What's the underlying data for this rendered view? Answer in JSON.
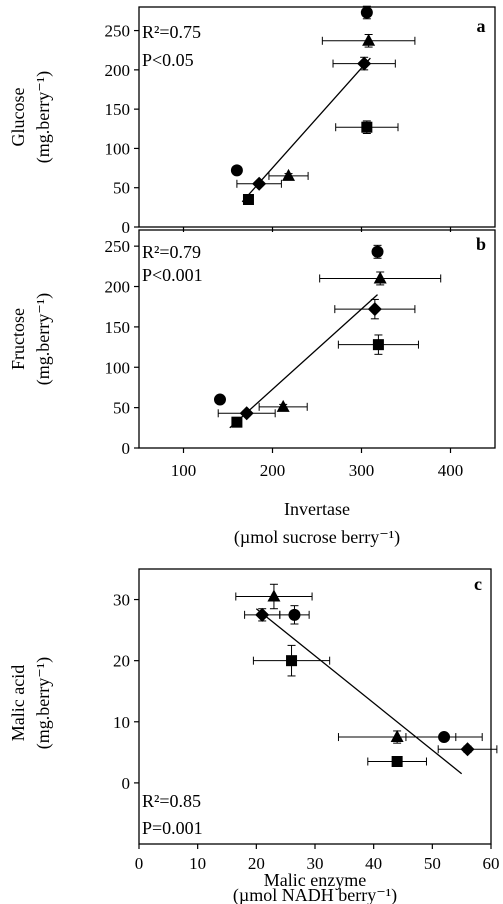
{
  "chart_data": [
    {
      "type": "scatter",
      "panel_label": "a",
      "stats": {
        "r2": "R²=0.75",
        "p": "P<0.05"
      },
      "ylabel": {
        "line1": "Glucose",
        "line2": "(mg.berry⁻¹)"
      },
      "xlim": [
        50,
        450
      ],
      "ylim": [
        0,
        280
      ],
      "yticks": [
        0,
        50,
        100,
        150,
        200,
        250
      ],
      "xticks": [
        100,
        200,
        300,
        400
      ],
      "show_xtick_labels": false,
      "points": [
        {
          "marker": "circle",
          "x": 160,
          "y": 72,
          "xerr": 0,
          "yerr": 3
        },
        {
          "marker": "square",
          "x": 173,
          "y": 35,
          "xerr": 0,
          "yerr": 3
        },
        {
          "marker": "diamond",
          "x": 185,
          "y": 55,
          "xerr": 25,
          "yerr": 3
        },
        {
          "marker": "triangle",
          "x": 218,
          "y": 65,
          "xerr": 22,
          "yerr": 3
        },
        {
          "marker": "circle",
          "x": 306,
          "y": 273,
          "xerr": 0,
          "yerr": 8
        },
        {
          "marker": "triangle",
          "x": 308,
          "y": 237,
          "xerr": 52,
          "yerr": 8
        },
        {
          "marker": "diamond",
          "x": 303,
          "y": 208,
          "xerr": 35,
          "yerr": 8
        },
        {
          "marker": "square",
          "x": 306,
          "y": 127,
          "xerr": 35,
          "yerr": 8
        }
      ],
      "fit_line": {
        "x1": 166,
        "y1": 32,
        "x2": 310,
        "y2": 215
      }
    },
    {
      "type": "scatter",
      "panel_label": "b",
      "stats": {
        "r2": "R²=0.79",
        "p": "P<0.001"
      },
      "ylabel": {
        "line1": "Fructose",
        "line2": "(mg.berry⁻¹)"
      },
      "xlabel": {
        "line1": "Invertase",
        "line2": "(µmol sucrose berry⁻¹)"
      },
      "xlim": [
        50,
        450
      ],
      "ylim": [
        0,
        270
      ],
      "yticks": [
        0,
        50,
        100,
        150,
        200,
        250
      ],
      "xticks": [
        100,
        200,
        300,
        400
      ],
      "show_xtick_labels": true,
      "points": [
        {
          "marker": "circle",
          "x": 141,
          "y": 60,
          "xerr": 0,
          "yerr": 3
        },
        {
          "marker": "square",
          "x": 160,
          "y": 32,
          "xerr": 0,
          "yerr": 3
        },
        {
          "marker": "diamond",
          "x": 171,
          "y": 43,
          "xerr": 32,
          "yerr": 3
        },
        {
          "marker": "triangle",
          "x": 212,
          "y": 51,
          "xerr": 27,
          "yerr": 3
        },
        {
          "marker": "circle",
          "x": 318,
          "y": 243,
          "xerr": 0,
          "yerr": 8
        },
        {
          "marker": "triangle",
          "x": 321,
          "y": 210,
          "xerr": 68,
          "yerr": 8
        },
        {
          "marker": "diamond",
          "x": 315,
          "y": 172,
          "xerr": 45,
          "yerr": 12
        },
        {
          "marker": "square",
          "x": 319,
          "y": 128,
          "xerr": 45,
          "yerr": 12
        }
      ],
      "fit_line": {
        "x1": 152,
        "y1": 25,
        "x2": 318,
        "y2": 190
      }
    },
    {
      "type": "scatter",
      "panel_label": "c",
      "stats": {
        "r2": "R²=0.85",
        "p": "P=0.001"
      },
      "ylabel": {
        "line1": "Malic acid",
        "line2": "(mg.berry⁻¹)"
      },
      "xlabel": {
        "line1": "Malic enzyme",
        "line2": "(µmol NADH berry⁻¹)"
      },
      "xlim": [
        0,
        60
      ],
      "ylim": [
        -10,
        35
      ],
      "yticks": [
        0,
        10,
        20,
        30
      ],
      "xticks": [
        0,
        10,
        20,
        30,
        40,
        50,
        60
      ],
      "show_xtick_labels": true,
      "points": [
        {
          "marker": "triangle",
          "x": 23,
          "y": 30.5,
          "xerr": 6.5,
          "yerr": 2
        },
        {
          "marker": "diamond",
          "x": 21,
          "y": 27.5,
          "xerr": 3,
          "yerr": 1
        },
        {
          "marker": "circle",
          "x": 26.5,
          "y": 27.5,
          "xerr": 2.5,
          "yerr": 1.5
        },
        {
          "marker": "square",
          "x": 26,
          "y": 20,
          "xerr": 6.5,
          "yerr": 2.5
        },
        {
          "marker": "triangle",
          "x": 44,
          "y": 7.5,
          "xerr": 10,
          "yerr": 1
        },
        {
          "marker": "circle",
          "x": 52,
          "y": 7.5,
          "xerr": 6.5,
          "yerr": 0.5
        },
        {
          "marker": "diamond",
          "x": 56,
          "y": 5.5,
          "xerr": 5,
          "yerr": 0.5
        },
        {
          "marker": "square",
          "x": 44,
          "y": 3.5,
          "xerr": 5,
          "yerr": 0.5
        }
      ],
      "fit_line": {
        "x1": 20,
        "y1": 28.5,
        "x2": 55,
        "y2": 1.5
      }
    }
  ]
}
